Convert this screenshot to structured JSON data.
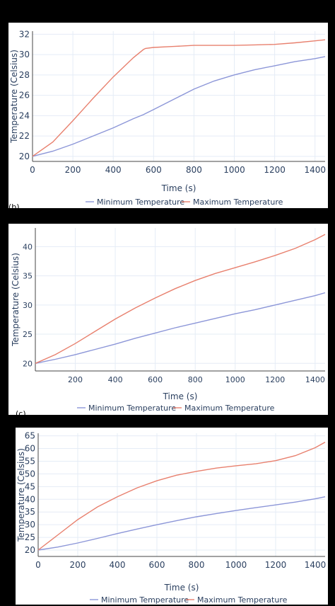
{
  "panel_labels": [
    "(b)",
    "(c)"
  ],
  "chart_data": [
    {
      "type": "line",
      "title": "",
      "xlabel": "Time (s)",
      "ylabel": "Temperature (Celsius)",
      "xlim": [
        0,
        1450
      ],
      "ylim": [
        19.5,
        32.3
      ],
      "xticks": [
        0,
        200,
        400,
        600,
        800,
        1000,
        1200,
        1400
      ],
      "yticks": [
        20,
        22,
        24,
        26,
        28,
        30,
        32
      ],
      "grid": true,
      "legend_position": "bottom",
      "x": [
        0,
        100,
        200,
        300,
        400,
        500,
        550,
        560,
        600,
        700,
        800,
        900,
        1000,
        1100,
        1200,
        1300,
        1400,
        1450
      ],
      "series": [
        {
          "name": "Minimum Temperature",
          "color": "#8c96d8",
          "values": [
            20.0,
            20.5,
            21.2,
            22.0,
            22.8,
            23.7,
            24.1,
            24.2,
            24.6,
            25.6,
            26.6,
            27.4,
            28.0,
            28.5,
            28.9,
            29.3,
            29.6,
            29.8
          ]
        },
        {
          "name": "Maximum Temperature",
          "color": "#e8806e",
          "values": [
            20.0,
            21.4,
            23.5,
            25.7,
            27.8,
            29.7,
            30.5,
            30.6,
            30.7,
            30.8,
            30.9,
            30.9,
            30.9,
            30.95,
            31.0,
            31.15,
            31.35,
            31.45
          ]
        }
      ]
    },
    {
      "type": "line",
      "title": "",
      "xlabel": "Time (s)",
      "ylabel": "Temperature (Celsius)",
      "xlim": [
        0,
        1450
      ],
      "ylim": [
        18.7,
        43.2
      ],
      "xticks": [
        200,
        400,
        600,
        800,
        1000,
        1200,
        1400
      ],
      "yticks": [
        20,
        25,
        30,
        35,
        40
      ],
      "grid": true,
      "legend_position": "bottom",
      "x": [
        0,
        100,
        200,
        300,
        400,
        500,
        600,
        700,
        800,
        900,
        1000,
        1100,
        1200,
        1300,
        1400,
        1450
      ],
      "series": [
        {
          "name": "Minimum Temperature",
          "color": "#8c96d8",
          "values": [
            20.0,
            20.7,
            21.5,
            22.4,
            23.3,
            24.3,
            25.2,
            26.1,
            26.9,
            27.7,
            28.5,
            29.2,
            30.0,
            30.8,
            31.6,
            32.1
          ]
        },
        {
          "name": "Maximum Temperature",
          "color": "#e8806e",
          "values": [
            20.0,
            21.5,
            23.4,
            25.5,
            27.6,
            29.5,
            31.2,
            32.8,
            34.2,
            35.4,
            36.4,
            37.4,
            38.5,
            39.7,
            41.2,
            42.1
          ]
        }
      ]
    },
    {
      "type": "line",
      "title": "",
      "xlabel": "Time (s)",
      "ylabel": "Temperature (Celsius)",
      "xlim": [
        0,
        1450
      ],
      "ylim": [
        17.5,
        66.0
      ],
      "xticks": [
        0,
        200,
        400,
        600,
        800,
        1000,
        1200,
        1400
      ],
      "yticks": [
        20,
        25,
        30,
        35,
        40,
        45,
        50,
        55,
        60,
        65
      ],
      "grid": true,
      "legend_position": "bottom",
      "x": [
        0,
        100,
        200,
        300,
        400,
        500,
        600,
        700,
        800,
        900,
        1000,
        1100,
        1200,
        1300,
        1400,
        1450
      ],
      "series": [
        {
          "name": "Minimum Temperature",
          "color": "#8c96d8",
          "values": [
            20.0,
            21.2,
            22.8,
            24.6,
            26.5,
            28.3,
            30.0,
            31.6,
            33.1,
            34.4,
            35.6,
            36.7,
            37.8,
            38.9,
            40.2,
            41.0
          ]
        },
        {
          "name": "Maximum Temperature",
          "color": "#e8806e",
          "values": [
            20.0,
            26.0,
            32.0,
            37.0,
            41.0,
            44.5,
            47.3,
            49.5,
            51.0,
            52.3,
            53.2,
            54.0,
            55.2,
            57.2,
            60.3,
            62.5
          ]
        }
      ]
    }
  ]
}
